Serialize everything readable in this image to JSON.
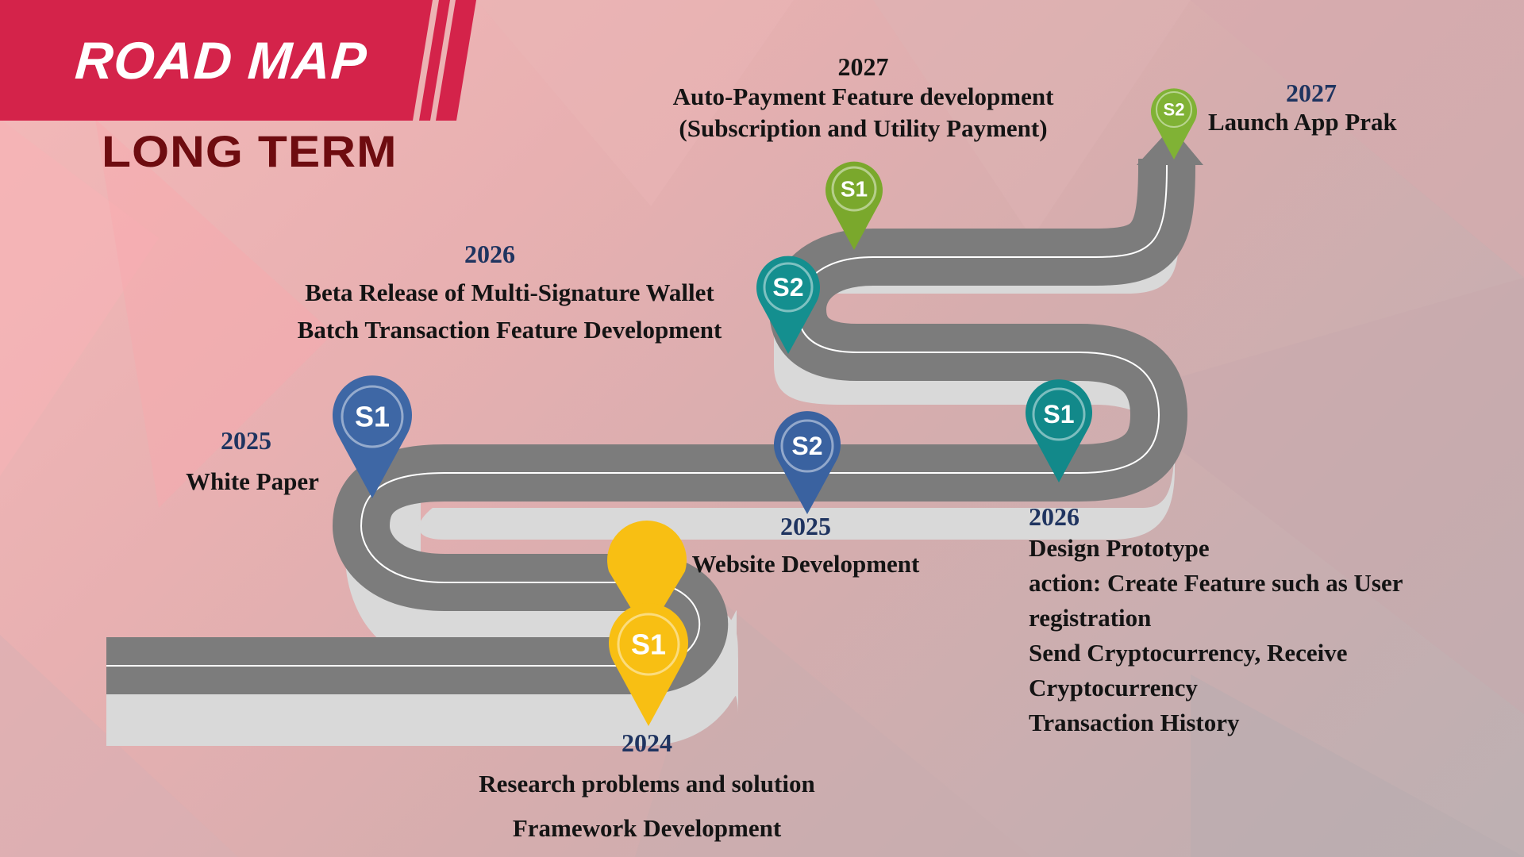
{
  "header": {
    "title": "ROAD MAP",
    "subtitle": "LONG TERM"
  },
  "colors": {
    "banner": "#d4234a",
    "subtitle": "#6e0c10",
    "road_surface": "#7c7c7c",
    "road_side": "#d9d9d9",
    "year_text": "#1f3460"
  },
  "pins": [
    {
      "label": "S1",
      "color": "#f8bf13"
    },
    {
      "label": "S1",
      "color": "#3e67a5"
    },
    {
      "label": "S2",
      "color": "#3a62a0"
    },
    {
      "label": "S1",
      "color": "#12898a"
    },
    {
      "label": "S2",
      "color": "#148f8f"
    },
    {
      "label": "S1",
      "color": "#7aa82c"
    },
    {
      "label": "S2",
      "color": "#80b235"
    }
  ],
  "milestones": [
    {
      "year": "2024",
      "lines": [
        "Research problems and solution",
        "Framework Development"
      ]
    },
    {
      "year": "2025",
      "lines": [
        "White Paper"
      ]
    },
    {
      "year": "2025",
      "lines": [
        "Website Development"
      ]
    },
    {
      "year": "2026",
      "lines": [
        "Design Prototype",
        "action: Create Feature such as  User",
        "registration",
        "Send Cryptocurrency, Receive",
        "Cryptocurrency",
        "Transaction History"
      ]
    },
    {
      "year": "2026",
      "lines": [
        "Beta Release of Multi-Signature Wallet",
        "Batch Transaction Feature Development"
      ]
    },
    {
      "year": "2027",
      "lines": [
        "Auto-Payment Feature development",
        "(Subscription and Utility Payment)"
      ]
    },
    {
      "year": "2027",
      "lines": [
        "Launch App Prak"
      ]
    }
  ]
}
